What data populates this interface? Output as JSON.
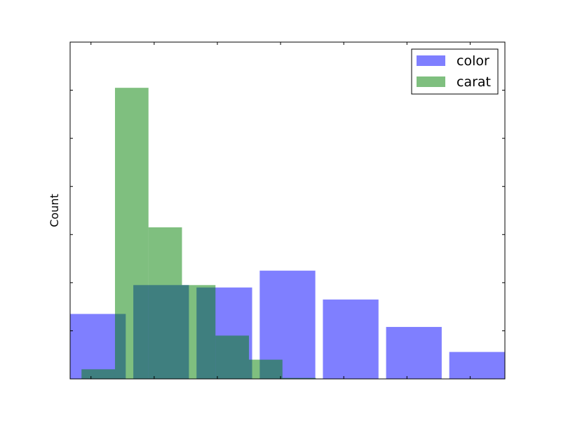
{
  "chart_data": {
    "type": "bar",
    "ylabel": "Count",
    "xlabel": "",
    "title": "",
    "ylim": [
      0,
      7
    ],
    "x_ticks_labeled": false,
    "y_ticks_labeled": false,
    "grid": false,
    "legend_position": "top-right",
    "series": [
      {
        "name": "color",
        "color": "#0000ff",
        "opacity": 0.5,
        "bars": [
          {
            "x0": 0.0,
            "x1": 0.88,
            "value": 1.35
          },
          {
            "x0": 1.0,
            "x1": 1.88,
            "value": 1.95
          },
          {
            "x0": 2.0,
            "x1": 2.88,
            "value": 1.9
          },
          {
            "x0": 3.0,
            "x1": 3.88,
            "value": 2.25
          },
          {
            "x0": 4.0,
            "x1": 4.88,
            "value": 1.65
          },
          {
            "x0": 5.0,
            "x1": 5.88,
            "value": 1.08
          },
          {
            "x0": 6.0,
            "x1": 6.88,
            "value": 0.56
          }
        ]
      },
      {
        "name": "carat",
        "color": "#008000",
        "opacity": 0.5,
        "bars": [
          {
            "x0": 0.18,
            "x1": 0.71,
            "value": 0.2
          },
          {
            "x0": 0.71,
            "x1": 1.24,
            "value": 6.05
          },
          {
            "x0": 1.24,
            "x1": 1.77,
            "value": 3.15
          },
          {
            "x0": 1.77,
            "x1": 2.3,
            "value": 1.95
          },
          {
            "x0": 2.3,
            "x1": 2.83,
            "value": 0.9
          },
          {
            "x0": 2.83,
            "x1": 3.36,
            "value": 0.4
          },
          {
            "x0": 3.36,
            "x1": 3.89,
            "value": 0.02
          }
        ]
      }
    ],
    "xlim": [
      0,
      6.88
    ],
    "x_tick_positions": [
      0.33,
      1.33,
      2.33,
      3.33,
      4.33,
      5.33,
      6.33
    ],
    "y_tick_positions": [
      1,
      2,
      3,
      4,
      5,
      6
    ]
  }
}
